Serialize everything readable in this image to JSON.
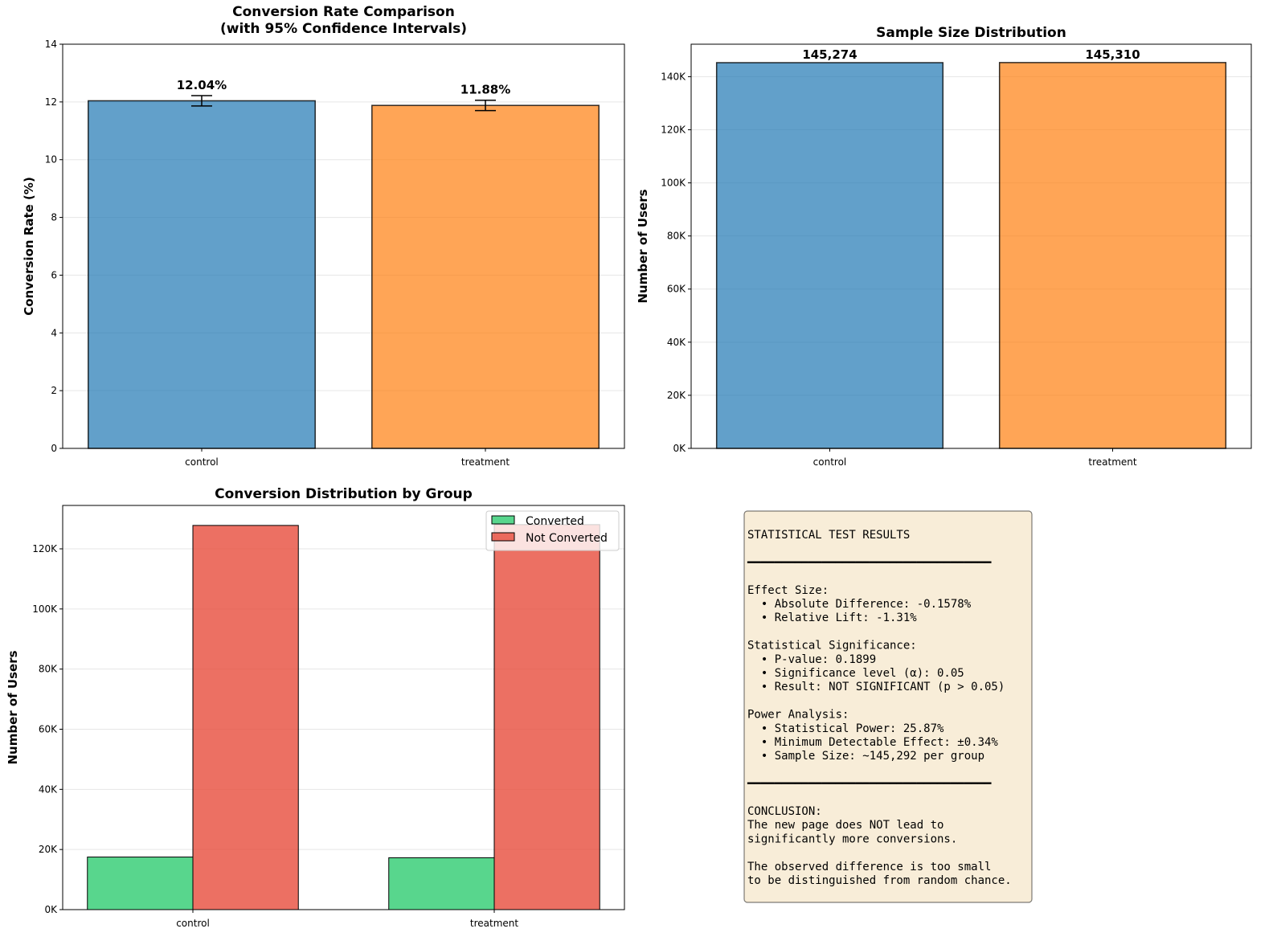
{
  "chart_data": [
    {
      "type": "bar",
      "title": "Conversion Rate Comparison\n(with 95% Confidence Intervals)",
      "title_lines": [
        "Conversion Rate Comparison",
        "(with 95% Confidence Intervals)"
      ],
      "xlabel": "",
      "ylabel": "Conversion Rate (%)",
      "categories": [
        "control",
        "treatment"
      ],
      "values": [
        12.04,
        11.88
      ],
      "error": [
        0.18,
        0.18
      ],
      "data_labels": [
        "12.04%",
        "11.88%"
      ],
      "colors": [
        "#1f77b4",
        "#ff7f0e"
      ],
      "ylim": [
        0,
        14
      ],
      "yticks": [
        0,
        2,
        4,
        6,
        8,
        10,
        12,
        14
      ],
      "ytick_labels": [
        "0",
        "2",
        "4",
        "6",
        "8",
        "10",
        "12",
        "14"
      ],
      "grid": "y"
    },
    {
      "type": "bar",
      "title": "Sample Size Distribution",
      "xlabel": "",
      "ylabel": "Number of Users",
      "categories": [
        "control",
        "treatment"
      ],
      "values": [
        145274,
        145310
      ],
      "data_labels": [
        "145,274",
        "145,310"
      ],
      "colors": [
        "#1f77b4",
        "#ff7f0e"
      ],
      "ylim": [
        0,
        152230
      ],
      "yticks": [
        0,
        20000,
        40000,
        60000,
        80000,
        100000,
        120000,
        140000
      ],
      "ytick_labels": [
        "0K",
        "20K",
        "40K",
        "60K",
        "80K",
        "100K",
        "120K",
        "140K"
      ],
      "grid": "y"
    },
    {
      "type": "bar",
      "title": "Conversion Distribution by Group",
      "xlabel": "",
      "ylabel": "Number of Users",
      "categories": [
        "control",
        "treatment"
      ],
      "series": [
        {
          "name": "Converted",
          "values": [
            17491,
            17263
          ],
          "color": "#2ecc71"
        },
        {
          "name": "Not Converted",
          "values": [
            127783,
            128047
          ],
          "color": "#e74c3c"
        }
      ],
      "ylim": [
        0,
        134430
      ],
      "yticks": [
        0,
        20000,
        40000,
        60000,
        80000,
        100000,
        120000
      ],
      "ytick_labels": [
        "0K",
        "20K",
        "40K",
        "60K",
        "80K",
        "100K",
        "120K"
      ],
      "legend": "top-right",
      "grid": "y"
    }
  ],
  "results_box": {
    "lines": [
      "STATISTICAL TEST RESULTS",
      "",
      "━━━━━━━━━━━━━━━━━━━━━━━━━━━━━━━━━━━━",
      "",
      "Effect Size:",
      "  • Absolute Difference: -0.1578%",
      "  • Relative Lift: -1.31%",
      "",
      "Statistical Significance:",
      "  • P-value: 0.1899",
      "  • Significance level (α): 0.05",
      "  • Result: NOT SIGNIFICANT (p > 0.05)",
      "",
      "Power Analysis:",
      "  • Statistical Power: 25.87%",
      "  • Minimum Detectable Effect: ±0.34%",
      "  • Sample Size: ~145,292 per group",
      "",
      "━━━━━━━━━━━━━━━━━━━━━━━━━━━━━━━━━━━━",
      "",
      "CONCLUSION:",
      "The new page does NOT lead to",
      "significantly more conversions.",
      "",
      "The observed difference is too small",
      "to be distinguished from random chance."
    ],
    "background": "#f5e6c8"
  }
}
